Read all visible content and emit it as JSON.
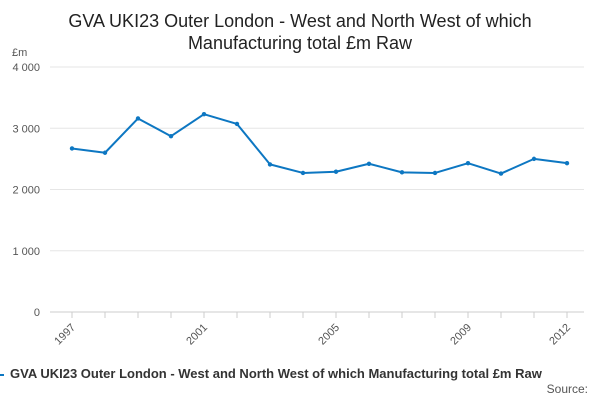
{
  "chart_data": {
    "type": "line",
    "title_line1": "GVA UKI23 Outer London - West and North West of which",
    "title_line2": "Manufacturing total £m Raw",
    "ylabel": "£m",
    "xlabel": "",
    "ylim": [
      0,
      4000
    ],
    "yticks": [
      0,
      1000,
      2000,
      3000,
      4000
    ],
    "ytick_labels": [
      "0",
      "1 000",
      "2 000",
      "3 000",
      "4 000"
    ],
    "xlim": [
      1997,
      2012
    ],
    "xticks": [
      1997,
      2001,
      2005,
      2009,
      2012
    ],
    "xtick_labels": [
      "1997",
      "2001",
      "2005",
      "2009",
      "2012"
    ],
    "grid": true,
    "legend_position": "bottom",
    "series": [
      {
        "name": "GVA UKI23 Outer London - West and North West of which Manufacturing total £m Raw",
        "color": "#0d77c2",
        "x": [
          1997,
          1998,
          1999,
          2000,
          2001,
          2002,
          2003,
          2004,
          2005,
          2006,
          2007,
          2008,
          2009,
          2010,
          2011,
          2012
        ],
        "values": [
          2670,
          2600,
          3160,
          2870,
          3230,
          3070,
          2410,
          2270,
          2290,
          2420,
          2280,
          2270,
          2430,
          2260,
          2500,
          2430
        ]
      }
    ]
  },
  "footer": {
    "source_label": "Source:"
  }
}
